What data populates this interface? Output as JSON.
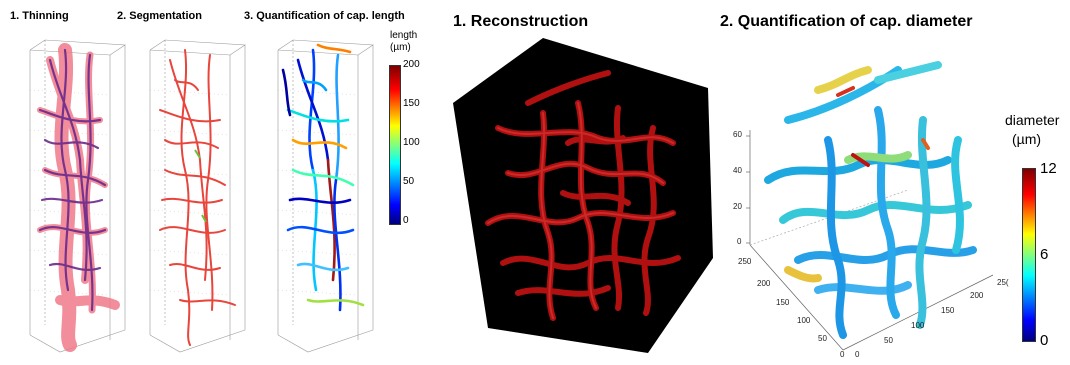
{
  "panels": {
    "thinning": {
      "title": "1. Thinning"
    },
    "segmentation": {
      "title": "2. Segmentation"
    },
    "length": {
      "title": "3. Quantification of cap. length",
      "colorbar": {
        "label_line1": "length",
        "label_line2": "(µm)",
        "ticks": [
          "200",
          "150",
          "100",
          "50",
          "0"
        ]
      }
    },
    "reconstruction": {
      "title": "1. Reconstruction"
    },
    "diameter": {
      "title": "2. Quantification of cap. diameter",
      "colorbar": {
        "label_line1": "diameter",
        "label_line2": "(µm)",
        "ticks": [
          "12",
          "6",
          "0"
        ]
      },
      "z_ticks": [
        "60",
        "40",
        "20",
        "0"
      ],
      "y_ticks": [
        "250",
        "200",
        "150",
        "100",
        "50",
        "0"
      ],
      "x_ticks": [
        "0",
        "50",
        "100",
        "150",
        "200",
        "25("
      ]
    }
  },
  "colors": {
    "vessel_red": "#d92b2b",
    "vessel_dark_red": "#b01010",
    "thinning_pink": "#f07a8a",
    "skeleton_purple": "#6a2a8a",
    "colormap": [
      "#00007f",
      "#0000ff",
      "#00ffff",
      "#ffff00",
      "#ff0000",
      "#7f0000"
    ]
  }
}
